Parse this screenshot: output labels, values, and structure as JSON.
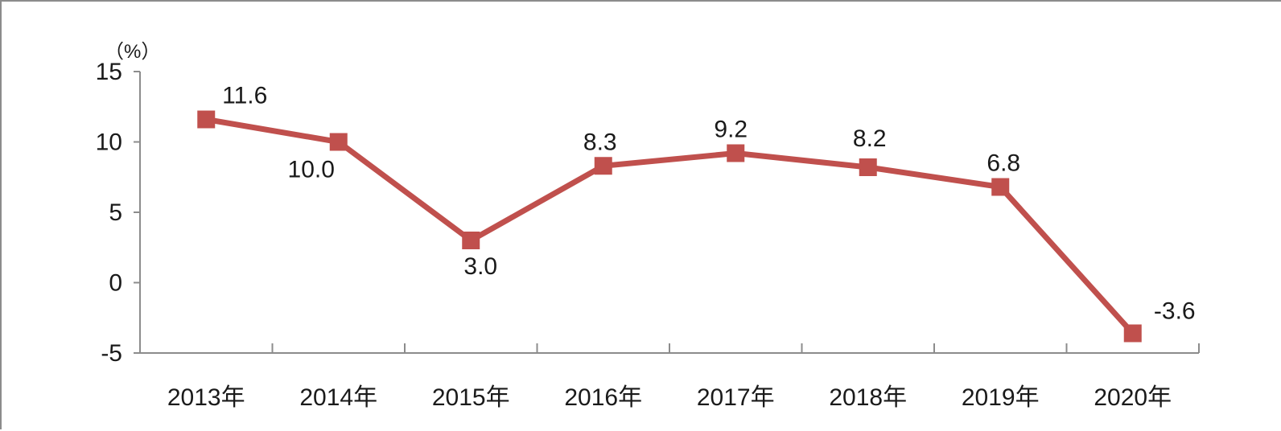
{
  "chart_data": {
    "type": "line",
    "title": "",
    "xlabel": "",
    "ylabel": "（%）",
    "categories": [
      "2013年",
      "2014年",
      "2015年",
      "2016年",
      "2017年",
      "2018年",
      "2019年",
      "2020年"
    ],
    "series": [
      {
        "values": [
          11.6,
          10.0,
          3.0,
          8.3,
          9.2,
          8.2,
          6.8,
          -3.6
        ],
        "color": "#c0504d"
      }
    ],
    "data_labels": [
      "11.6",
      "10.0",
      "3.0",
      "8.3",
      "9.2",
      "8.2",
      "6.8",
      "-3.6"
    ],
    "yticks": [
      15,
      10,
      5,
      0,
      -5
    ],
    "ylim": [
      -5,
      15
    ],
    "grid": false,
    "marker": "square"
  }
}
